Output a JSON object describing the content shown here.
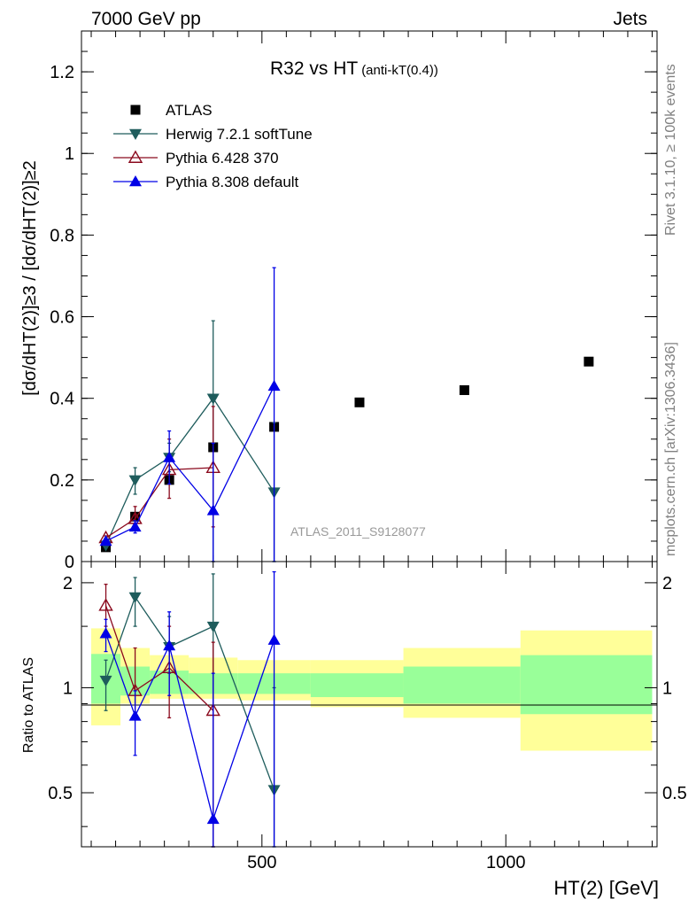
{
  "header": {
    "left": "7000 GeV pp",
    "right": "Jets"
  },
  "side_labels": {
    "rivet": "Rivet 3.1.10, ≥ 100k events",
    "mcplots": "mcplots.cern.ch [arXiv:1306.3436]"
  },
  "chart_data": [
    {
      "type": "scatter",
      "title": "R32 vs HT",
      "title_suffix": "(anti-kT(0.4))",
      "ylabel": "[dσ/dHT(2)]≥3 / [dσ/dHT(2)]≥2",
      "xlim": [
        130,
        1310
      ],
      "ylim": [
        0,
        1.3
      ],
      "yticks": [
        0,
        0.2,
        0.4,
        0.6,
        0.8,
        1,
        1.2
      ],
      "ytick_labels": [
        "0",
        "0.2",
        "0.4",
        "0.6",
        "0.8",
        "1",
        "1.2"
      ],
      "watermark": "ATLAS_2011_S9128077",
      "legend_position": "top-left",
      "series": [
        {
          "name": "ATLAS",
          "color": "#000000",
          "marker": "square",
          "x": [
            180,
            240,
            310,
            400,
            525,
            700,
            915,
            1170
          ],
          "y": [
            0.035,
            0.11,
            0.2,
            0.28,
            0.33,
            0.39,
            0.42,
            0.49
          ]
        },
        {
          "name": "Herwig 7.2.1 softTune",
          "color": "#1e5c5c",
          "marker": "triangle-down",
          "x": [
            180,
            240,
            310,
            400,
            525
          ],
          "y": [
            0.04,
            0.2,
            0.255,
            0.4,
            0.17
          ],
          "yerr_low": [
            0.035,
            0.165,
            0.22,
            0.0,
            0.0
          ],
          "yerr_high": [
            0.045,
            0.23,
            0.29,
            0.59,
            0.34
          ]
        },
        {
          "name": "Pythia 6.428 370",
          "color": "#8b0a1e",
          "marker": "triangle-open",
          "x": [
            180,
            240,
            310,
            400
          ],
          "y": [
            0.058,
            0.105,
            0.225,
            0.23
          ],
          "yerr_low": [
            0.053,
            0.09,
            0.155,
            0.085
          ],
          "yerr_high": [
            0.063,
            0.135,
            0.3,
            0.38
          ]
        },
        {
          "name": "Pythia 8.308 default",
          "color": "#0000e6",
          "marker": "triangle",
          "x": [
            180,
            240,
            310,
            400,
            525
          ],
          "y": [
            0.05,
            0.085,
            0.255,
            0.125,
            0.43
          ],
          "yerr_low": [
            0.045,
            0.07,
            0.19,
            0.0,
            0.0
          ],
          "yerr_high": [
            0.055,
            0.1,
            0.32,
            0.29,
            0.72
          ]
        }
      ]
    },
    {
      "type": "scatter",
      "ylabel": "Ratio to ATLAS",
      "xlabel": "HT(2) [GeV]",
      "xlim": [
        130,
        1310
      ],
      "ylim": [
        0.35,
        2.3
      ],
      "yscale": "log",
      "xticks": [
        500,
        1000
      ],
      "xtick_labels": [
        "500",
        "1000"
      ],
      "yticks": [
        0.5,
        1,
        2
      ],
      "ytick_labels": [
        "0.5",
        "1",
        "2"
      ],
      "bands": {
        "bin_edges": [
          150,
          210,
          270,
          350,
          450,
          600,
          790,
          1030,
          1300
        ],
        "yellow_low": [
          0.78,
          0.9,
          0.93,
          0.93,
          0.92,
          0.88,
          0.82,
          0.66
        ],
        "yellow_high": [
          1.48,
          1.3,
          1.24,
          1.22,
          1.2,
          1.2,
          1.3,
          1.46
        ],
        "green_low": [
          0.9,
          0.95,
          0.96,
          0.96,
          0.96,
          0.94,
          0.9,
          0.84
        ],
        "green_high": [
          1.25,
          1.15,
          1.12,
          1.1,
          1.1,
          1.1,
          1.15,
          1.24
        ]
      },
      "series": [
        {
          "name": "Herwig 7.2.1 softTune",
          "color": "#1e5c5c",
          "marker": "triangle-down",
          "x": [
            180,
            240,
            310,
            400,
            525
          ],
          "y": [
            1.05,
            1.82,
            1.31,
            1.5,
            0.51
          ],
          "yerr_low": [
            0.86,
            1.5,
            1.1,
            0.35,
            0.35
          ],
          "yerr_high": [
            1.2,
            2.07,
            1.6,
            2.12,
            1.0
          ]
        },
        {
          "name": "Pythia 6.428 370",
          "color": "#8b0a1e",
          "marker": "triangle-open",
          "x": [
            180,
            240,
            310,
            400
          ],
          "y": [
            1.72,
            0.98,
            1.14,
            0.86
          ],
          "yerr_low": [
            1.5,
            0.82,
            0.82,
            0.35
          ],
          "yerr_high": [
            1.98,
            1.3,
            1.5,
            1.35
          ]
        },
        {
          "name": "Pythia 8.308 default",
          "color": "#0000e6",
          "marker": "triangle",
          "x": [
            180,
            240,
            310,
            400,
            525
          ],
          "y": [
            1.43,
            0.83,
            1.32,
            0.42,
            1.37
          ],
          "yerr_low": [
            1.27,
            0.64,
            0.95,
            0.35,
            0.35
          ],
          "yerr_high": [
            1.57,
            0.98,
            1.65,
            1.1,
            2.15
          ]
        }
      ]
    }
  ]
}
